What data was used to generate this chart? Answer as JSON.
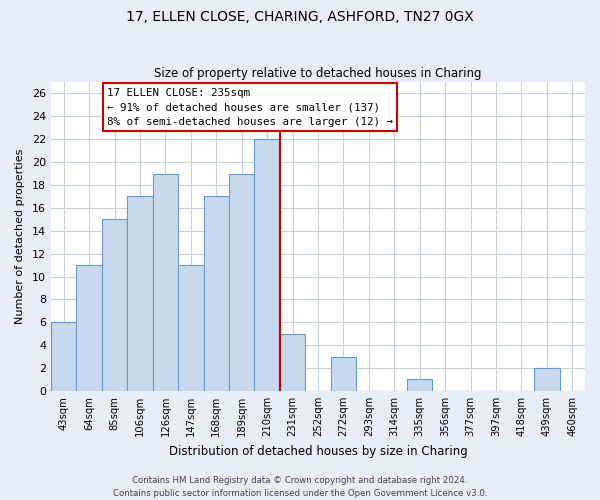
{
  "title": "17, ELLEN CLOSE, CHARING, ASHFORD, TN27 0GX",
  "subtitle": "Size of property relative to detached houses in Charing",
  "xlabel": "Distribution of detached houses by size in Charing",
  "ylabel": "Number of detached properties",
  "bar_labels": [
    "43sqm",
    "64sqm",
    "85sqm",
    "106sqm",
    "126sqm",
    "147sqm",
    "168sqm",
    "189sqm",
    "210sqm",
    "231sqm",
    "252sqm",
    "272sqm",
    "293sqm",
    "314sqm",
    "335sqm",
    "356sqm",
    "377sqm",
    "397sqm",
    "418sqm",
    "439sqm",
    "460sqm"
  ],
  "bar_values": [
    6,
    11,
    15,
    17,
    19,
    11,
    17,
    19,
    22,
    5,
    0,
    3,
    0,
    0,
    1,
    0,
    0,
    0,
    0,
    2,
    0
  ],
  "bar_color": "#c8d9ed",
  "bar_edge_color": "#6699cc",
  "ref_line_color": "#cc0000",
  "annotation_title": "17 ELLEN CLOSE: 235sqm",
  "annotation_line1": "← 91% of detached houses are smaller (137)",
  "annotation_line2": "8% of semi-detached houses are larger (12) →",
  "annotation_box_color": "#ffffff",
  "annotation_box_edge": "#cc0000",
  "ylim": [
    0,
    27
  ],
  "yticks": [
    0,
    2,
    4,
    6,
    8,
    10,
    12,
    14,
    16,
    18,
    20,
    22,
    24,
    26
  ],
  "plot_bg_color": "#ffffff",
  "fig_bg_color": "#e8eef7",
  "grid_color": "#c8d0dc",
  "footer_line1": "Contains HM Land Registry data © Crown copyright and database right 2024.",
  "footer_line2": "Contains public sector information licensed under the Open Government Licence v3.0."
}
